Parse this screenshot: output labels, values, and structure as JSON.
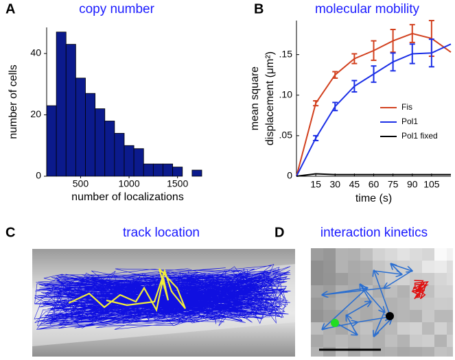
{
  "chart_data": [
    {
      "type": "histogram",
      "label": "A",
      "title": "copy number",
      "xlabel": "number of localizations",
      "ylabel": "number of cells",
      "bins": [
        150,
        250,
        350,
        450,
        550,
        650,
        750,
        850,
        950,
        1050,
        1150,
        1250,
        1350,
        1450,
        1550,
        1650,
        1750
      ],
      "values": [
        23,
        47,
        43,
        32,
        27,
        22,
        18,
        14,
        10,
        9,
        4,
        4,
        4,
        3,
        0,
        2
      ],
      "color": "#0b1a8c",
      "xlim": [
        150,
        1750
      ],
      "ylim": [
        0,
        48.5
      ],
      "xticks": [
        500,
        1000,
        1500
      ],
      "yticks": [
        0,
        20,
        40
      ]
    },
    {
      "type": "line",
      "label": "B",
      "title": "molecular mobility",
      "xlabel": "time (s)",
      "ylabel": [
        "mean square",
        "displacement (μm²)"
      ],
      "x": [
        0,
        15,
        30,
        45,
        60,
        75,
        90,
        105,
        120
      ],
      "series": [
        {
          "name": "Fis",
          "color": "#d2401e",
          "values": [
            0,
            0.09,
            0.125,
            0.145,
            0.155,
            0.167,
            0.176,
            0.17,
            0.153
          ],
          "errors": [
            null,
            0.003,
            0.004,
            0.006,
            0.012,
            0.014,
            0.011,
            0.022,
            null
          ]
        },
        {
          "name": "Pol1",
          "color": "#1a2ee6",
          "values": [
            0,
            0.047,
            0.086,
            0.111,
            0.126,
            0.141,
            0.151,
            0.152,
            0.163
          ],
          "errors": [
            null,
            0.003,
            0.005,
            0.007,
            0.01,
            0.011,
            0.012,
            0.017,
            null
          ]
        },
        {
          "name": "Pol1 fixed",
          "color": "#000000",
          "values": [
            0,
            0.003,
            0.002,
            0.002,
            0.002,
            0.002,
            0.002,
            0.002,
            0.002
          ]
        }
      ],
      "xlim": [
        0,
        120
      ],
      "ylim": [
        0,
        0.192
      ],
      "xticks": [
        15,
        30,
        45,
        60,
        75,
        90,
        105
      ],
      "yticks": [
        0,
        {
          "value": 0.05,
          "label": ".05"
        },
        {
          "value": 0.1,
          "label": ".10"
        },
        {
          "value": 0.15,
          "label": ".15"
        }
      ]
    }
  ],
  "panels": [
    {
      "label": "C",
      "title": "track location"
    },
    {
      "label": "D",
      "title": "interaction kinetics"
    }
  ]
}
